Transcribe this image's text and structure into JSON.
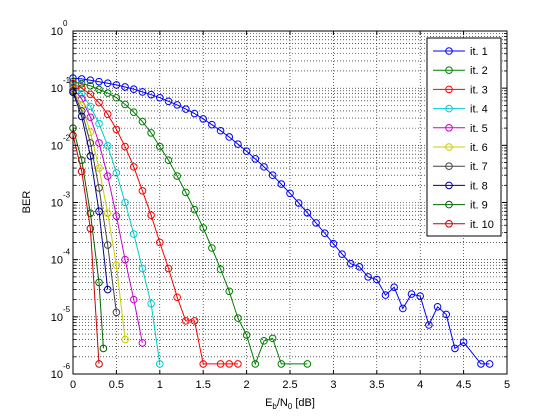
{
  "chart_data": {
    "type": "line",
    "xlabel": {
      "main": "E",
      "sub1": "b",
      "mid": "/N",
      "sub2": "0",
      "tail": " [dB]"
    },
    "ylabel": "BER",
    "xlim": [
      0,
      5
    ],
    "ylim": [
      1e-06,
      1
    ],
    "yscale": "log",
    "grid": true,
    "legend_position": "top-right",
    "x_ticks": [
      {
        "v": 0,
        "label": "0"
      },
      {
        "v": 0.5,
        "label": "0.5"
      },
      {
        "v": 1,
        "label": "1"
      },
      {
        "v": 1.5,
        "label": "1.5"
      },
      {
        "v": 2,
        "label": "2"
      },
      {
        "v": 2.5,
        "label": "2.5"
      },
      {
        "v": 3,
        "label": "3"
      },
      {
        "v": 3.5,
        "label": "3.5"
      },
      {
        "v": 4,
        "label": "4"
      },
      {
        "v": 4.5,
        "label": "4.5"
      },
      {
        "v": 5,
        "label": "5"
      }
    ],
    "y_ticks": [
      {
        "v": 1,
        "base": "10",
        "exp": "0"
      },
      {
        "v": 0.1,
        "base": "10",
        "exp": "-1"
      },
      {
        "v": 0.01,
        "base": "10",
        "exp": "-2"
      },
      {
        "v": 0.001,
        "base": "10",
        "exp": "-3"
      },
      {
        "v": 0.0001,
        "base": "10",
        "exp": "-4"
      },
      {
        "v": 1e-05,
        "base": "10",
        "exp": "-5"
      },
      {
        "v": 1e-06,
        "base": "10",
        "exp": "-6"
      }
    ],
    "series": [
      {
        "name": "it. 1",
        "color": "#0000ff",
        "x": [
          0,
          0.1,
          0.2,
          0.3,
          0.4,
          0.5,
          0.6,
          0.7,
          0.8,
          0.9,
          1.0,
          1.1,
          1.2,
          1.3,
          1.4,
          1.5,
          1.6,
          1.7,
          1.8,
          1.9,
          2.0,
          2.1,
          2.2,
          2.3,
          2.4,
          2.5,
          2.6,
          2.7,
          2.8,
          2.9,
          3.0,
          3.1,
          3.2,
          3.3,
          3.4,
          3.5,
          3.6,
          3.7,
          3.8,
          3.9,
          4.0,
          4.1,
          4.2,
          4.3,
          4.4,
          4.5,
          4.7,
          4.8
        ],
        "y": [
          0.15,
          0.145,
          0.138,
          0.13,
          0.122,
          0.114,
          0.105,
          0.096,
          0.086,
          0.077,
          0.068,
          0.059,
          0.051,
          0.043,
          0.036,
          0.029,
          0.023,
          0.018,
          0.014,
          0.0105,
          0.0079,
          0.0058,
          0.0042,
          0.003,
          0.0021,
          0.00145,
          0.00098,
          0.00066,
          0.00044,
          0.00029,
          0.00019,
          0.000125,
          8.5e-05,
          7.5e-05,
          5e-05,
          4.5e-05,
          2.4e-05,
          3.3e-05,
          1.4e-05,
          2.5e-05,
          2.3e-05,
          7.2e-06,
          1.5e-05,
          1.1e-05,
          2.8e-06,
          3.6e-06,
          1.5e-06,
          1.5e-06
        ]
      },
      {
        "name": "it. 2",
        "color": "#008000",
        "x": [
          0,
          0.1,
          0.2,
          0.3,
          0.4,
          0.5,
          0.6,
          0.7,
          0.8,
          0.9,
          1.0,
          1.1,
          1.2,
          1.3,
          1.4,
          1.5,
          1.6,
          1.7,
          1.8,
          1.9,
          2.0,
          2.1,
          2.2,
          2.3,
          2.4,
          2.7
        ],
        "y": [
          0.13,
          0.12,
          0.11,
          0.095,
          0.082,
          0.068,
          0.052,
          0.038,
          0.026,
          0.0165,
          0.0095,
          0.0055,
          0.0029,
          0.0015,
          0.00075,
          0.00036,
          0.00016,
          6.8e-05,
          2.8e-05,
          9.5e-06,
          4.8e-06,
          1.5e-06,
          3.8e-06,
          4.2e-06,
          1.5e-06,
          1.5e-06
        ]
      },
      {
        "name": "it. 3",
        "color": "#ff0000",
        "x": [
          0,
          0.1,
          0.2,
          0.3,
          0.4,
          0.5,
          0.6,
          0.7,
          0.8,
          0.9,
          1.0,
          1.1,
          1.2,
          1.3,
          1.4,
          1.5,
          1.7,
          1.8,
          1.9
        ],
        "y": [
          0.12,
          0.1,
          0.078,
          0.056,
          0.035,
          0.019,
          0.0095,
          0.0042,
          0.0016,
          0.0006,
          0.0002,
          7e-05,
          2.2e-05,
          8.5e-06,
          8.5e-06,
          1.5e-06,
          1.5e-06,
          1.5e-06,
          1.5e-06
        ]
      },
      {
        "name": "it. 4",
        "color": "#00cccc",
        "x": [
          0,
          0.1,
          0.2,
          0.3,
          0.4,
          0.5,
          0.6,
          0.7,
          0.8,
          0.9,
          1.0
        ],
        "y": [
          0.11,
          0.08,
          0.048,
          0.024,
          0.0098,
          0.0033,
          0.001,
          0.00028,
          7e-05,
          1.7e-05,
          1.5e-06
        ]
      },
      {
        "name": "it. 5",
        "color": "#cc00cc",
        "x": [
          0,
          0.1,
          0.2,
          0.3,
          0.4,
          0.5,
          0.6,
          0.7,
          0.8
        ],
        "y": [
          0.1,
          0.065,
          0.031,
          0.011,
          0.0029,
          0.00058,
          0.0001,
          2e-05,
          3.5e-06
        ]
      },
      {
        "name": "it. 6",
        "color": "#cccc00",
        "x": [
          0,
          0.1,
          0.2,
          0.3,
          0.4,
          0.5,
          0.6
        ],
        "y": [
          0.095,
          0.05,
          0.017,
          0.004,
          0.00065,
          8e-05,
          4e-06
        ]
      },
      {
        "name": "it. 7",
        "color": "#444444",
        "x": [
          0,
          0.1,
          0.2,
          0.3,
          0.4,
          0.5
        ],
        "y": [
          0.09,
          0.04,
          0.011,
          0.0018,
          0.00018,
          1.2e-05
        ]
      },
      {
        "name": "it. 8",
        "color": "#00008b",
        "x": [
          0,
          0.1,
          0.2,
          0.3,
          0.4
        ],
        "y": [
          0.085,
          0.032,
          0.0065,
          0.0007,
          3e-05
        ]
      },
      {
        "name": "it. 9",
        "color": "#006400",
        "x": [
          0,
          0.1,
          0.2,
          0.3,
          0.35
        ],
        "y": [
          0.02,
          0.0055,
          0.00065,
          4e-05,
          2.8e-06
        ]
      },
      {
        "name": "it. 10",
        "color": "#cc0000",
        "x": [
          0,
          0.1,
          0.2,
          0.3
        ],
        "y": [
          0.015,
          0.0035,
          0.00035,
          1.5e-06
        ]
      }
    ]
  }
}
